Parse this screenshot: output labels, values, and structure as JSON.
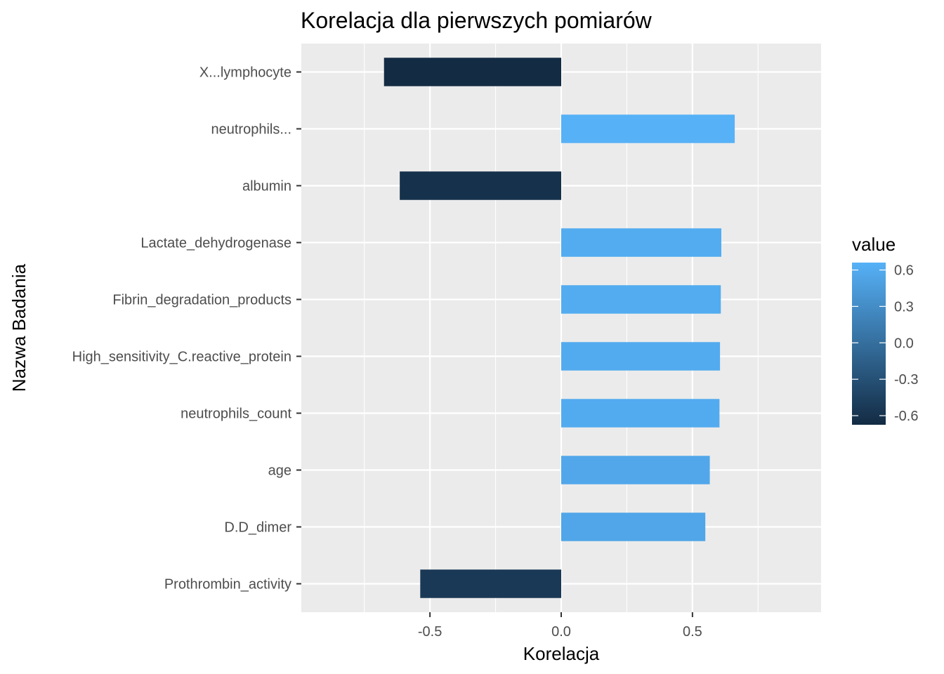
{
  "chart_data": {
    "type": "bar",
    "orientation": "horizontal",
    "title": "Korelacja dla pierwszych pomiarów",
    "xlabel": "Korelacja",
    "ylabel": "Nazwa Badania",
    "categories": [
      "X...lymphocyte",
      "neutrophils...",
      "albumin",
      "Lactate_dehydrogenase",
      "Fibrin_degradation_products",
      "High_sensitivity_C.reactive_protein",
      "neutrophils_count",
      "age",
      "D.D_dimer",
      "Prothrombin_activity"
    ],
    "values": [
      -0.675,
      0.661,
      -0.615,
      0.61,
      0.608,
      0.605,
      0.603,
      0.566,
      0.549,
      -0.537
    ],
    "xlim": [
      -0.99,
      0.99
    ],
    "xticks": [
      -0.5,
      0.0,
      0.5
    ],
    "xtick_labels": [
      "-0.5",
      "0.0",
      "0.5"
    ],
    "grid": true,
    "legend": {
      "title": "value",
      "position": "right",
      "type": "colorbar",
      "range": [
        -0.675,
        0.661
      ],
      "ticks": [
        0.6,
        0.3,
        0.0,
        -0.3,
        -0.6
      ],
      "tick_labels": [
        "0.6",
        "0.3",
        "0.0",
        "-0.3",
        "-0.6"
      ],
      "low_color": "#132B43",
      "high_color": "#56B1F7"
    },
    "panel_background": "#EBEBEB"
  }
}
